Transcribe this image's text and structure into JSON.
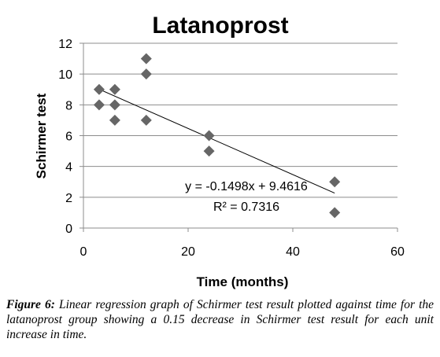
{
  "chart_data": {
    "type": "scatter",
    "title": "Latanoprost",
    "xlabel": "Time (months)",
    "ylabel": "Schirmer test",
    "xlim": [
      0,
      60
    ],
    "ylim": [
      0,
      12
    ],
    "xticks": [
      0,
      20,
      40,
      60
    ],
    "yticks": [
      0,
      2,
      4,
      6,
      8,
      10,
      12
    ],
    "grid": "horizontal",
    "marker": "diamond",
    "marker_color": "#666666",
    "points": [
      {
        "x": 3,
        "y": 9
      },
      {
        "x": 3,
        "y": 8
      },
      {
        "x": 6,
        "y": 9
      },
      {
        "x": 6,
        "y": 8
      },
      {
        "x": 6,
        "y": 7
      },
      {
        "x": 12,
        "y": 11
      },
      {
        "x": 12,
        "y": 10
      },
      {
        "x": 12,
        "y": 7
      },
      {
        "x": 24,
        "y": 6
      },
      {
        "x": 24,
        "y": 5
      },
      {
        "x": 48,
        "y": 3
      },
      {
        "x": 48,
        "y": 1
      }
    ],
    "trendline": {
      "slope": -0.1498,
      "intercept": 9.4616,
      "x_range": [
        3,
        48
      ]
    },
    "equation_label": "y = -0.1498x + 9.4616",
    "r2_label": "R² = 0.7316"
  },
  "caption": {
    "label": "Figure 6:",
    "text": "Linear regression graph of Schirmer test result plotted against time for the latanoprost group showing a 0.15 decrease in Schirmer test result for each unit increase in time."
  }
}
